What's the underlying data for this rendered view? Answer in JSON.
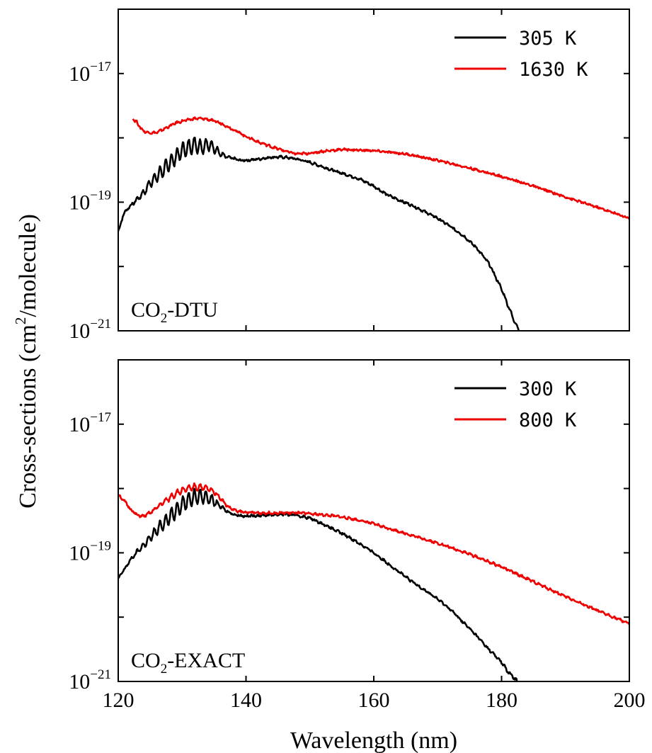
{
  "chart_data": [
    {
      "type": "line",
      "panel": "top",
      "label_main": "CO",
      "label_sub": "2",
      "label_rest": "-DTU",
      "xlim": [
        120,
        200
      ],
      "ylim_exponent": [
        -21,
        -16
      ],
      "yscale": "log",
      "x_ticks": [
        120,
        140,
        160,
        180,
        200
      ],
      "y_tick_labels": [
        {
          "base": "10",
          "exp": "−17",
          "exponent": -17
        },
        {
          "base": "10",
          "exp": "−19",
          "exponent": -19
        },
        {
          "base": "10",
          "exp": "−21",
          "exponent": -21
        }
      ],
      "legend_position": "top-right",
      "series": [
        {
          "name": "305 K",
          "color": "#000000",
          "x": [
            120,
            121,
            122,
            123,
            124,
            125,
            126,
            127,
            128,
            129,
            130,
            131,
            132,
            133,
            134,
            135,
            136,
            137,
            138,
            139,
            140,
            142,
            144,
            146,
            148,
            150,
            152,
            154,
            156,
            158,
            160,
            162,
            164,
            166,
            168,
            170,
            172,
            174,
            176,
            178,
            180,
            181,
            182,
            182.8
          ],
          "y": [
            -19.45,
            -19.15,
            -19.05,
            -18.95,
            -18.85,
            -18.7,
            -18.6,
            -18.5,
            -18.4,
            -18.3,
            -18.2,
            -18.15,
            -18.1,
            -18.15,
            -18.1,
            -18.15,
            -18.25,
            -18.3,
            -18.32,
            -18.35,
            -18.35,
            -18.33,
            -18.3,
            -18.3,
            -18.33,
            -18.38,
            -18.45,
            -18.52,
            -18.58,
            -18.65,
            -18.75,
            -18.88,
            -18.97,
            -19.05,
            -19.15,
            -19.25,
            -19.38,
            -19.52,
            -19.7,
            -19.95,
            -20.35,
            -20.6,
            -20.85,
            -21.0
          ],
          "osc_amp": [
            0,
            0,
            0.02,
            0.03,
            0.05,
            0.07,
            0.09,
            0.11,
            0.12,
            0.12,
            0.12,
            0.12,
            0.12,
            0.11,
            0.1,
            0.08,
            0.04,
            0.02,
            0.01,
            0.01,
            0.01,
            0.01,
            0.01,
            0.01,
            0.01,
            0.01,
            0.01,
            0.01,
            0.01,
            0.01,
            0.01,
            0.01,
            0.01,
            0.01,
            0.01,
            0.01,
            0.01,
            0.01,
            0.01,
            0.01,
            0.02,
            0.02,
            0.02,
            0.02
          ]
        },
        {
          "name": "1630 K",
          "color": "#ee0000",
          "x": [
            122.3,
            123,
            124,
            125,
            126,
            127,
            128,
            129,
            130,
            131,
            132,
            133,
            134,
            135,
            136,
            137,
            138,
            139,
            140,
            141,
            142,
            143,
            144,
            145,
            146,
            147,
            148,
            150,
            152,
            155,
            160,
            165,
            170,
            175,
            180,
            185,
            190,
            195,
            200
          ],
          "y": [
            -17.68,
            -17.78,
            -17.9,
            -17.92,
            -17.92,
            -17.87,
            -17.82,
            -17.77,
            -17.74,
            -17.72,
            -17.7,
            -17.7,
            -17.71,
            -17.74,
            -17.77,
            -17.82,
            -17.87,
            -17.92,
            -17.98,
            -18.02,
            -18.07,
            -18.1,
            -18.14,
            -18.17,
            -18.2,
            -18.23,
            -18.25,
            -18.24,
            -18.21,
            -18.18,
            -18.2,
            -18.25,
            -18.35,
            -18.47,
            -18.6,
            -18.75,
            -18.92,
            -19.08,
            -19.25
          ],
          "osc_amp": [
            0.03,
            0.02,
            0.01,
            0.01,
            0.01,
            0.01,
            0.01,
            0.01,
            0.01,
            0.01,
            0.01,
            0.01,
            0.01,
            0.01,
            0.01,
            0.01,
            0.01,
            0.01,
            0.01,
            0.01,
            0.01,
            0.01,
            0.01,
            0.01,
            0.01,
            0.01,
            0.01,
            0.01,
            0.01,
            0.01,
            0.005,
            0.005,
            0.005,
            0.005,
            0.005,
            0.005,
            0.005,
            0.005,
            0.005
          ]
        }
      ]
    },
    {
      "type": "line",
      "panel": "bottom",
      "label_main": "CO",
      "label_sub": "2",
      "label_rest": "-EXACT",
      "xlim": [
        120,
        200
      ],
      "ylim_exponent": [
        -21,
        -16
      ],
      "yscale": "log",
      "x_ticks": [
        120,
        140,
        160,
        180,
        200
      ],
      "y_tick_labels": [
        {
          "base": "10",
          "exp": "−17",
          "exponent": -17
        },
        {
          "base": "10",
          "exp": "−19",
          "exponent": -19
        },
        {
          "base": "10",
          "exp": "−21",
          "exponent": -21
        }
      ],
      "legend_position": "top-right",
      "series": [
        {
          "name": "300 K",
          "color": "#000000",
          "x": [
            120,
            121,
            122,
            123,
            124,
            125,
            126,
            127,
            128,
            129,
            130,
            131,
            132,
            133,
            134,
            135,
            136,
            137,
            138,
            139,
            140,
            142,
            144,
            146,
            148,
            150,
            152,
            154,
            156,
            158,
            160,
            162,
            164,
            166,
            168,
            170,
            172,
            174,
            176,
            178,
            180,
            181,
            182,
            182.5
          ],
          "y": [
            -19.4,
            -19.25,
            -19.1,
            -18.98,
            -18.88,
            -18.77,
            -18.65,
            -18.55,
            -18.45,
            -18.35,
            -18.25,
            -18.18,
            -18.13,
            -18.12,
            -18.14,
            -18.2,
            -18.28,
            -18.35,
            -18.4,
            -18.42,
            -18.43,
            -18.42,
            -18.41,
            -18.4,
            -18.42,
            -18.46,
            -18.55,
            -18.65,
            -18.75,
            -18.87,
            -19.0,
            -19.15,
            -19.3,
            -19.45,
            -19.58,
            -19.72,
            -19.88,
            -20.08,
            -20.28,
            -20.5,
            -20.7,
            -20.85,
            -20.95,
            -21.0
          ],
          "osc_amp": [
            0,
            0.01,
            0.02,
            0.03,
            0.04,
            0.06,
            0.08,
            0.1,
            0.11,
            0.12,
            0.12,
            0.12,
            0.12,
            0.11,
            0.1,
            0.07,
            0.03,
            0.02,
            0.01,
            0.01,
            0.01,
            0.01,
            0.01,
            0.01,
            0.01,
            0.01,
            0.01,
            0.01,
            0.01,
            0.01,
            0.01,
            0.01,
            0.01,
            0.01,
            0.01,
            0.01,
            0.01,
            0.01,
            0.01,
            0.01,
            0.02,
            0.02,
            0.02,
            0.02
          ]
        },
        {
          "name": "800 K",
          "color": "#ee0000",
          "x": [
            120,
            121,
            122,
            123,
            124,
            125,
            126,
            127,
            128,
            129,
            130,
            131,
            132,
            133,
            134,
            135,
            136,
            137,
            138,
            139,
            140,
            142,
            144,
            146,
            148,
            150,
            152,
            154,
            156,
            158,
            160,
            165,
            170,
            175,
            180,
            185,
            190,
            195,
            200
          ],
          "y": [
            -18.1,
            -18.2,
            -18.33,
            -18.42,
            -18.43,
            -18.38,
            -18.3,
            -18.22,
            -18.15,
            -18.08,
            -18.03,
            -18.0,
            -17.98,
            -17.98,
            -18.0,
            -18.05,
            -18.15,
            -18.27,
            -18.33,
            -18.36,
            -18.37,
            -18.38,
            -18.38,
            -18.38,
            -18.38,
            -18.39,
            -18.41,
            -18.43,
            -18.46,
            -18.5,
            -18.55,
            -18.7,
            -18.85,
            -19.02,
            -19.22,
            -19.45,
            -19.68,
            -19.9,
            -20.1
          ],
          "osc_amp": [
            0.02,
            0.01,
            0.01,
            0.01,
            0.01,
            0.02,
            0.02,
            0.03,
            0.04,
            0.05,
            0.05,
            0.05,
            0.05,
            0.05,
            0.04,
            0.03,
            0.02,
            0.01,
            0.01,
            0.01,
            0.01,
            0.01,
            0.01,
            0.01,
            0.01,
            0.01,
            0.01,
            0.01,
            0.01,
            0.01,
            0.01,
            0.01,
            0.01,
            0.01,
            0.01,
            0.01,
            0.01,
            0.01,
            0.01
          ]
        }
      ]
    }
  ],
  "xlabel": "Wavelength (nm)",
  "ylabel_pre": "Cross-sections (cm",
  "ylabel_sup": "2",
  "ylabel_post": "/molecule)"
}
